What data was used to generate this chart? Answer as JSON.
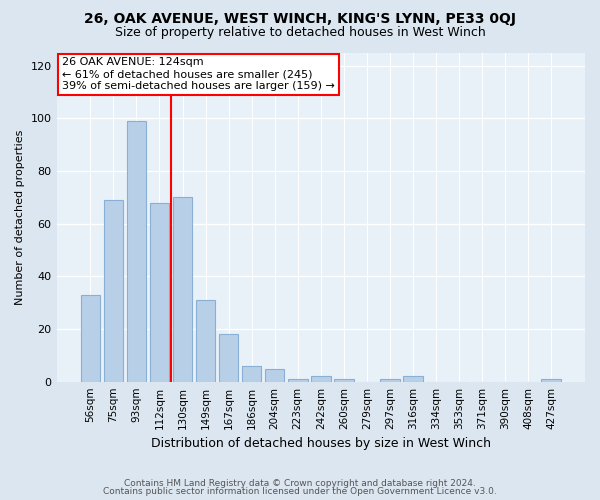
{
  "title1": "26, OAK AVENUE, WEST WINCH, KING'S LYNN, PE33 0QJ",
  "title2": "Size of property relative to detached houses in West Winch",
  "xlabel": "Distribution of detached houses by size in West Winch",
  "ylabel": "Number of detached properties",
  "categories": [
    "56sqm",
    "75sqm",
    "93sqm",
    "112sqm",
    "130sqm",
    "149sqm",
    "167sqm",
    "186sqm",
    "204sqm",
    "223sqm",
    "242sqm",
    "260sqm",
    "279sqm",
    "297sqm",
    "316sqm",
    "334sqm",
    "353sqm",
    "371sqm",
    "390sqm",
    "408sqm",
    "427sqm"
  ],
  "values": [
    33,
    69,
    99,
    68,
    70,
    31,
    18,
    6,
    5,
    1,
    2,
    1,
    0,
    1,
    2,
    0,
    0,
    0,
    0,
    0,
    1
  ],
  "bar_color": "#b8cfe8",
  "bar_edge_color": "#8aafd4",
  "annotation_line1": "26 OAK AVENUE: 124sqm",
  "annotation_line2": "← 61% of detached houses are smaller (245)",
  "annotation_line3": "39% of semi-detached houses are larger (159) →",
  "vline_x": 3.5,
  "ylim": [
    0,
    125
  ],
  "yticks": [
    0,
    20,
    40,
    60,
    80,
    100,
    120
  ],
  "footnote1": "Contains HM Land Registry data © Crown copyright and database right 2024.",
  "footnote2": "Contains public sector information licensed under the Open Government Licence v3.0.",
  "bg_color": "#dce6f0",
  "plot_bg_color": "#e8f0f8",
  "grid_color": "#ffffff",
  "title1_fontsize": 10,
  "title2_fontsize": 9,
  "ylabel_fontsize": 8,
  "xlabel_fontsize": 9,
  "tick_fontsize": 8,
  "xtick_fontsize": 7.5,
  "footnote_fontsize": 6.5,
  "ann_fontsize": 8
}
